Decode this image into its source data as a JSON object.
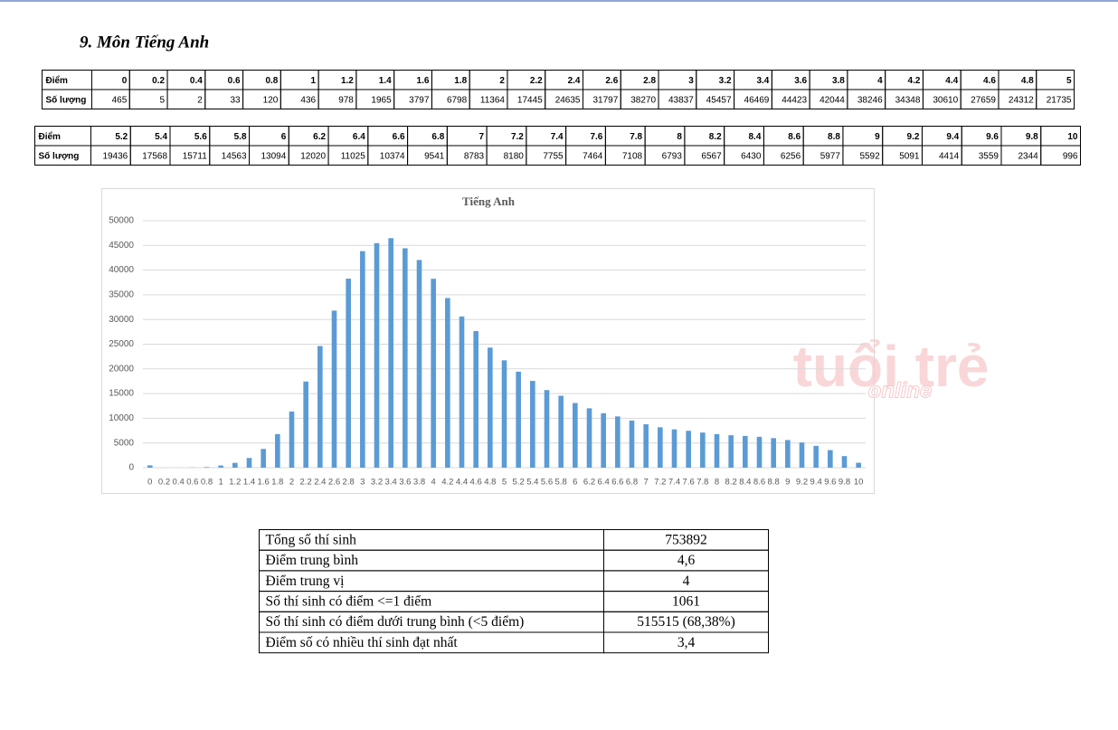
{
  "title": "9.  Môn Tiếng Anh",
  "tables": [
    {
      "row_labels": [
        "Điểm",
        "Số lượng"
      ],
      "scores": [
        "0",
        "0.2",
        "0.4",
        "0.6",
        "0.8",
        "1",
        "1.2",
        "1.4",
        "1.6",
        "1.8",
        "2",
        "2.2",
        "2.4",
        "2.6",
        "2.8",
        "3",
        "3.2",
        "3.4",
        "3.6",
        "3.8",
        "4",
        "4.2",
        "4.4",
        "4.6",
        "4.8",
        "5"
      ],
      "counts": [
        465,
        5,
        2,
        33,
        120,
        436,
        978,
        1965,
        3797,
        6798,
        11364,
        17445,
        24635,
        31797,
        38270,
        43837,
        45457,
        46469,
        44423,
        42044,
        38246,
        34348,
        30610,
        27659,
        24312,
        21735
      ]
    },
    {
      "row_labels": [
        "Điểm",
        "Số lượng"
      ],
      "scores": [
        "5.2",
        "5.4",
        "5.6",
        "5.8",
        "6",
        "6.2",
        "6.4",
        "6.6",
        "6.8",
        "7",
        "7.2",
        "7.4",
        "7.6",
        "7.8",
        "8",
        "8.2",
        "8.4",
        "8.6",
        "8.8",
        "9",
        "9.2",
        "9.4",
        "9.6",
        "9.8",
        "10"
      ],
      "counts": [
        19436,
        17568,
        15711,
        14563,
        13094,
        12020,
        11025,
        10374,
        9541,
        8783,
        8180,
        7755,
        7464,
        7108,
        6793,
        6567,
        6430,
        6256,
        5977,
        5592,
        5091,
        4414,
        3559,
        2344,
        996
      ]
    }
  ],
  "chart_data": {
    "type": "bar",
    "title": "Tiếng Anh",
    "categories": [
      "0",
      "0.2",
      "0.4",
      "0.6",
      "0.8",
      "1",
      "1.2",
      "1.4",
      "1.6",
      "1.8",
      "2",
      "2.2",
      "2.4",
      "2.6",
      "2.8",
      "3",
      "3.2",
      "3.4",
      "3.6",
      "3.8",
      "4",
      "4.2",
      "4.4",
      "4.6",
      "4.8",
      "5",
      "5.2",
      "5.4",
      "5.6",
      "5.8",
      "6",
      "6.2",
      "6.4",
      "6.6",
      "6.8",
      "7",
      "7.2",
      "7.4",
      "7.6",
      "7.8",
      "8",
      "8.2",
      "8.4",
      "8.6",
      "8.8",
      "9",
      "9.2",
      "9.4",
      "9.6",
      "9.8",
      "10"
    ],
    "values": [
      465,
      5,
      2,
      33,
      120,
      436,
      978,
      1965,
      3797,
      6798,
      11364,
      17445,
      24635,
      31797,
      38270,
      43837,
      45457,
      46469,
      44423,
      42044,
      38246,
      34348,
      30610,
      27659,
      24312,
      21735,
      19436,
      17568,
      15711,
      14563,
      13094,
      12020,
      11025,
      10374,
      9541,
      8783,
      8180,
      7755,
      7464,
      7108,
      6793,
      6567,
      6430,
      6256,
      5977,
      5592,
      5091,
      4414,
      3559,
      2344,
      996
    ],
    "color": "#5b9bd5",
    "ylim": [
      0,
      50000
    ],
    "yticks": [
      0,
      5000,
      10000,
      15000,
      20000,
      25000,
      30000,
      35000,
      40000,
      45000,
      50000
    ],
    "grid": true
  },
  "watermark": [
    "tuổi trẻ",
    "online"
  ],
  "stats": [
    [
      "Tổng số thí sinh",
      "753892"
    ],
    [
      "Điểm trung bình",
      "4,6"
    ],
    [
      "Điểm trung vị",
      "4"
    ],
    [
      "Số thí sinh có điểm <=1 điểm",
      "1061"
    ],
    [
      "Số thí sinh có điểm dưới trung bình (<5 điểm)",
      "515515 (68,38%)"
    ],
    [
      "Điểm số có nhiều thí sinh đạt nhất",
      "3,4"
    ]
  ]
}
